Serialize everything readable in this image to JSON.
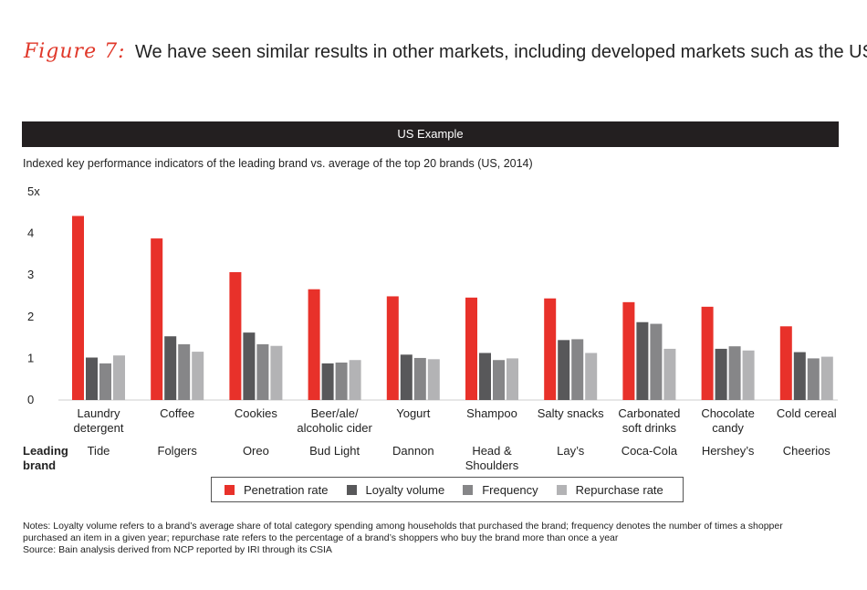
{
  "header": {
    "figure_label": "Figure 7:",
    "title": "We have seen similar results in other markets, including developed markets such as the US"
  },
  "banner": {
    "text": "US Example"
  },
  "subtitle": "Indexed key performance indicators of the leading brand vs. average of the top 20 brands (US, 2014)",
  "chart_data": {
    "type": "bar",
    "title": "Indexed key performance indicators of the leading brand vs. average of the top 20 brands (US, 2014)",
    "ylim": [
      0,
      5
    ],
    "yticks": [
      "0",
      "1",
      "2",
      "3",
      "4",
      "5x"
    ],
    "categories": [
      [
        "Laundry",
        "detergent"
      ],
      [
        "Coffee"
      ],
      [
        "Cookies"
      ],
      [
        "Beer/ale/",
        "alcoholic cider"
      ],
      [
        "Yogurt"
      ],
      [
        "Shampoo"
      ],
      [
        "Salty snacks"
      ],
      [
        "Carbonated",
        "soft drinks"
      ],
      [
        "Chocolate",
        "candy"
      ],
      [
        "Cold cereal"
      ]
    ],
    "row_label": [
      "Leading",
      "brand"
    ],
    "brands": [
      [
        "Tide"
      ],
      [
        "Folgers"
      ],
      [
        "Oreo"
      ],
      [
        "Bud Light"
      ],
      [
        "Dannon"
      ],
      [
        "Head &",
        "Shoulders"
      ],
      [
        "Lay’s"
      ],
      [
        "Coca-Cola"
      ],
      [
        "Hershey’s"
      ],
      [
        "Cheerios"
      ]
    ],
    "series": [
      {
        "name": "Penetration rate",
        "color": "#e8312a",
        "values": [
          4.42,
          3.88,
          3.07,
          2.66,
          2.49,
          2.46,
          2.44,
          2.35,
          2.24,
          1.77
        ]
      },
      {
        "name": "Loyalty volume",
        "color": "#58585a",
        "values": [
          1.02,
          1.53,
          1.62,
          0.88,
          1.09,
          1.13,
          1.44,
          1.87,
          1.23,
          1.15
        ]
      },
      {
        "name": "Frequency",
        "color": "#868688",
        "values": [
          0.88,
          1.34,
          1.34,
          0.9,
          1.01,
          0.96,
          1.46,
          1.83,
          1.29,
          1.0
        ]
      },
      {
        "name": "Repurchase rate",
        "color": "#b3b3b5",
        "values": [
          1.07,
          1.16,
          1.3,
          0.96,
          0.98,
          1.0,
          1.13,
          1.23,
          1.19,
          1.04
        ]
      }
    ]
  },
  "notes": {
    "line1": "Notes: Loyalty volume refers to a brand’s average share of total category spending among households that purchased the brand; frequency denotes the number of times a shopper",
    "line2": "purchased an item in a given year; repurchase rate refers to the percentage of a brand’s shoppers who buy the brand more than once a year",
    "source": "Source: Bain analysis derived from NCP reported by IRI through its CSIA"
  }
}
